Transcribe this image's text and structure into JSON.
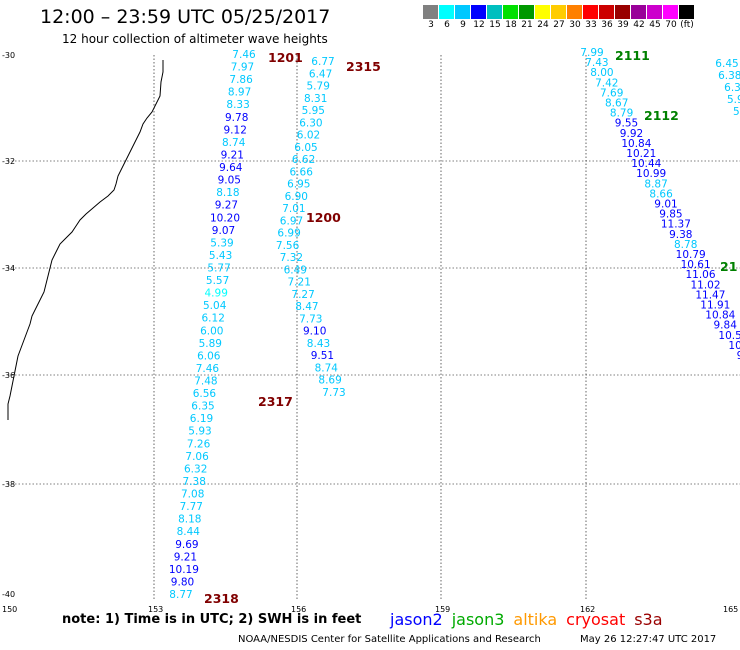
{
  "header": {
    "title": "12:00 – 23:59 UTC 05/25/2017",
    "subtitle": "12 hour collection of altimeter wave heights"
  },
  "legend": {
    "unit": "(ft)",
    "items": [
      {
        "label": "3",
        "color": "#808080"
      },
      {
        "label": "6",
        "color": "#00ffff"
      },
      {
        "label": "9",
        "color": "#00c8ff"
      },
      {
        "label": "12",
        "color": "#0000ff"
      },
      {
        "label": "15",
        "color": "#00bfbf"
      },
      {
        "label": "18",
        "color": "#00e000"
      },
      {
        "label": "21",
        "color": "#009900"
      },
      {
        "label": "24",
        "color": "#ffff00"
      },
      {
        "label": "27",
        "color": "#ffcc00"
      },
      {
        "label": "30",
        "color": "#ff8000"
      },
      {
        "label": "33",
        "color": "#ff0000"
      },
      {
        "label": "36",
        "color": "#cc0000"
      },
      {
        "label": "39",
        "color": "#990000"
      },
      {
        "label": "42",
        "color": "#990099"
      },
      {
        "label": "45",
        "color": "#cc00cc"
      },
      {
        "label": "70",
        "color": "#ff00ff"
      },
      {
        "label": "(ft)",
        "color": "#000000"
      }
    ]
  },
  "axes": {
    "lat_labels": [
      "-30",
      "-32",
      "-34",
      "-36",
      "-38",
      "-40"
    ],
    "lon_labels": [
      "150",
      "153",
      "156",
      "159",
      "162",
      "165"
    ]
  },
  "tracks": [
    {
      "label": "1201",
      "color": "#800000",
      "points": [
        {
          "v": "7.46",
          "c": "#00c8ff"
        },
        {
          "v": "7.97",
          "c": "#00c8ff"
        },
        {
          "v": "7.86",
          "c": "#00c8ff"
        },
        {
          "v": "8.97",
          "c": "#00c8ff"
        },
        {
          "v": "8.33",
          "c": "#00c8ff"
        },
        {
          "v": "9.78",
          "c": "#0000ff"
        },
        {
          "v": "9.12",
          "c": "#0000ff"
        },
        {
          "v": "8.74",
          "c": "#00c8ff"
        },
        {
          "v": "9.21",
          "c": "#0000ff"
        },
        {
          "v": "9.64",
          "c": "#0000ff"
        },
        {
          "v": "9.05",
          "c": "#0000ff"
        },
        {
          "v": "8.18",
          "c": "#00c8ff"
        },
        {
          "v": "9.27",
          "c": "#0000ff"
        },
        {
          "v": "10.20",
          "c": "#0000ff"
        },
        {
          "v": "9.07",
          "c": "#0000ff"
        },
        {
          "v": "5.39",
          "c": "#00c8ff"
        },
        {
          "v": "5.43",
          "c": "#00c8ff"
        },
        {
          "v": "5.77",
          "c": "#00c8ff"
        },
        {
          "v": "5.57",
          "c": "#00c8ff"
        },
        {
          "v": "4.99",
          "c": "#00ffff"
        },
        {
          "v": "5.04",
          "c": "#00c8ff"
        },
        {
          "v": "6.12",
          "c": "#00c8ff"
        },
        {
          "v": "6.00",
          "c": "#00c8ff"
        },
        {
          "v": "5.89",
          "c": "#00c8ff"
        },
        {
          "v": "6.06",
          "c": "#00c8ff"
        },
        {
          "v": "7.46",
          "c": "#00c8ff"
        },
        {
          "v": "7.48",
          "c": "#00c8ff"
        },
        {
          "v": "6.56",
          "c": "#00c8ff"
        },
        {
          "v": "6.35",
          "c": "#00c8ff"
        },
        {
          "v": "6.19",
          "c": "#00c8ff"
        },
        {
          "v": "5.93",
          "c": "#00c8ff"
        },
        {
          "v": "7.26",
          "c": "#00c8ff"
        },
        {
          "v": "7.06",
          "c": "#00c8ff"
        },
        {
          "v": "6.32",
          "c": "#00c8ff"
        },
        {
          "v": "7.38",
          "c": "#00c8ff"
        },
        {
          "v": "7.08",
          "c": "#00c8ff"
        },
        {
          "v": "7.77",
          "c": "#00c8ff"
        },
        {
          "v": "8.18",
          "c": "#00c8ff"
        },
        {
          "v": "8.44",
          "c": "#00c8ff"
        },
        {
          "v": "9.69",
          "c": "#0000ff"
        },
        {
          "v": "9.21",
          "c": "#0000ff"
        },
        {
          "v": "10.19",
          "c": "#0000ff"
        },
        {
          "v": "9.80",
          "c": "#0000ff"
        },
        {
          "v": "8.77",
          "c": "#00c8ff"
        }
      ]
    },
    {
      "label": "2315",
      "color": "#800000",
      "points": [
        {
          "v": "6.77",
          "c": "#00c8ff"
        },
        {
          "v": "6.47",
          "c": "#00c8ff"
        },
        {
          "v": "5.79",
          "c": "#00c8ff"
        },
        {
          "v": "8.31",
          "c": "#00c8ff"
        },
        {
          "v": "5.95",
          "c": "#00c8ff"
        },
        {
          "v": "6.30",
          "c": "#00c8ff"
        },
        {
          "v": "6.02",
          "c": "#00c8ff"
        },
        {
          "v": "6.05",
          "c": "#00c8ff"
        },
        {
          "v": "6.62",
          "c": "#00c8ff"
        },
        {
          "v": "6.66",
          "c": "#00c8ff"
        },
        {
          "v": "6.95",
          "c": "#00c8ff"
        },
        {
          "v": "6.90",
          "c": "#00c8ff"
        },
        {
          "v": "7.01",
          "c": "#00c8ff"
        },
        {
          "v": "6.97",
          "c": "#00c8ff"
        },
        {
          "v": "6.99",
          "c": "#00c8ff"
        },
        {
          "v": "7.56",
          "c": "#00c8ff"
        },
        {
          "v": "7.32",
          "c": "#00c8ff"
        },
        {
          "v": "6.49",
          "c": "#00c8ff"
        },
        {
          "v": "7.21",
          "c": "#00c8ff"
        },
        {
          "v": "7.27",
          "c": "#00c8ff"
        },
        {
          "v": "8.47",
          "c": "#00c8ff"
        },
        {
          "v": "7.73",
          "c": "#00c8ff"
        },
        {
          "v": "9.10",
          "c": "#0000ff"
        },
        {
          "v": "8.43",
          "c": "#00c8ff"
        },
        {
          "v": "9.51",
          "c": "#0000ff"
        },
        {
          "v": "8.74",
          "c": "#00c8ff"
        },
        {
          "v": "8.69",
          "c": "#00c8ff"
        },
        {
          "v": "7.73",
          "c": "#00c8ff"
        }
      ]
    },
    {
      "label": "2111",
      "color": "#008000",
      "points": [
        {
          "v": "7.99",
          "c": "#00c8ff"
        },
        {
          "v": "7.43",
          "c": "#00c8ff"
        },
        {
          "v": "8.00",
          "c": "#00c8ff"
        },
        {
          "v": "7.42",
          "c": "#00c8ff"
        },
        {
          "v": "7.69",
          "c": "#00c8ff"
        },
        {
          "v": "8.67",
          "c": "#00c8ff"
        },
        {
          "v": "8.79",
          "c": "#00c8ff"
        },
        {
          "v": "9.55",
          "c": "#0000ff"
        },
        {
          "v": "9.92",
          "c": "#0000ff"
        },
        {
          "v": "10.84",
          "c": "#0000ff"
        },
        {
          "v": "10.21",
          "c": "#0000ff"
        },
        {
          "v": "10.44",
          "c": "#0000ff"
        },
        {
          "v": "10.99",
          "c": "#0000ff"
        },
        {
          "v": "8.87",
          "c": "#00c8ff"
        },
        {
          "v": "8.66",
          "c": "#00c8ff"
        },
        {
          "v": "9.01",
          "c": "#0000ff"
        },
        {
          "v": "9.85",
          "c": "#0000ff"
        },
        {
          "v": "11.37",
          "c": "#0000ff"
        },
        {
          "v": "9.38",
          "c": "#0000ff"
        },
        {
          "v": "8.78",
          "c": "#00c8ff"
        },
        {
          "v": "10.79",
          "c": "#0000ff"
        },
        {
          "v": "10.61",
          "c": "#0000ff"
        },
        {
          "v": "11.06",
          "c": "#0000ff"
        },
        {
          "v": "11.02",
          "c": "#0000ff"
        },
        {
          "v": "11.47",
          "c": "#0000ff"
        },
        {
          "v": "11.91",
          "c": "#0000ff"
        },
        {
          "v": "10.84",
          "c": "#0000ff"
        },
        {
          "v": "9.84",
          "c": "#0000ff"
        },
        {
          "v": "10.5",
          "c": "#0000ff"
        },
        {
          "v": "10",
          "c": "#0000ff"
        },
        {
          "v": "9",
          "c": "#0000ff"
        }
      ]
    },
    {
      "label": "2112",
      "color": "#008000",
      "points": [
        {
          "v": "6.45",
          "c": "#00c8ff"
        },
        {
          "v": "6.38",
          "c": "#00c8ff"
        },
        {
          "v": "6.3",
          "c": "#00c8ff"
        },
        {
          "v": "5.9",
          "c": "#00c8ff"
        },
        {
          "v": "5.",
          "c": "#00c8ff"
        }
      ]
    }
  ],
  "extra_labels": [
    {
      "text": "1200",
      "color": "#800000"
    },
    {
      "text": "2317",
      "color": "#800000"
    },
    {
      "text": "2318",
      "color": "#800000"
    },
    {
      "text": "21",
      "color": "#008000"
    }
  ],
  "footer": {
    "note": "note: 1) Time is in UTC; 2) SWH is in feet",
    "satellites": [
      {
        "name": "jason2",
        "color": "#0000ff"
      },
      {
        "name": "jason3",
        "color": "#00aa00"
      },
      {
        "name": "altika",
        "color": "#ff9900"
      },
      {
        "name": "cryosat",
        "color": "#ff0000"
      },
      {
        "name": "s3a",
        "color": "#990000"
      }
    ],
    "credit": "NOAA/NESDIS Center for Satellite Applications and Research",
    "timestamp": "May 26 12:27:47 UTC 2017"
  }
}
